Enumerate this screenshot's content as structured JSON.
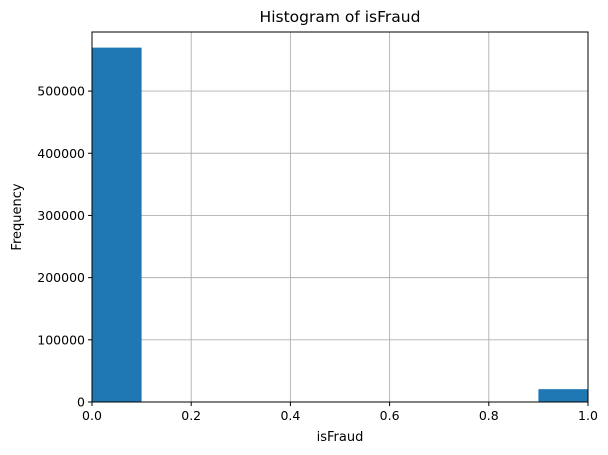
{
  "chart_data": {
    "type": "bar",
    "title": "Histogram of isFraud",
    "xlabel": "isFraud",
    "ylabel": "Frequency",
    "xlim": [
      0.0,
      1.0
    ],
    "ylim": [
      0,
      595000
    ],
    "grid": true,
    "x_ticks": [
      0.0,
      0.2,
      0.4,
      0.6,
      0.8,
      1.0
    ],
    "x_tick_labels": [
      "0.0",
      "0.2",
      "0.4",
      "0.6",
      "0.8",
      "1.0"
    ],
    "y_ticks": [
      0,
      100000,
      200000,
      300000,
      400000,
      500000
    ],
    "y_tick_labels": [
      "0",
      "100000",
      "200000",
      "300000",
      "400000",
      "500000"
    ],
    "bins": [
      {
        "x0": 0.0,
        "x1": 0.1,
        "value": 569877
      },
      {
        "x0": 0.1,
        "x1": 0.2,
        "value": 0
      },
      {
        "x0": 0.2,
        "x1": 0.3,
        "value": 0
      },
      {
        "x0": 0.3,
        "x1": 0.4,
        "value": 0
      },
      {
        "x0": 0.4,
        "x1": 0.5,
        "value": 0
      },
      {
        "x0": 0.5,
        "x1": 0.6,
        "value": 0
      },
      {
        "x0": 0.6,
        "x1": 0.7,
        "value": 0
      },
      {
        "x0": 0.7,
        "x1": 0.8,
        "value": 0
      },
      {
        "x0": 0.8,
        "x1": 0.9,
        "value": 0
      },
      {
        "x0": 0.9,
        "x1": 1.0,
        "value": 20663
      }
    ],
    "bar_color": "#1f77b4",
    "grid_color": "#b0b0b0"
  }
}
